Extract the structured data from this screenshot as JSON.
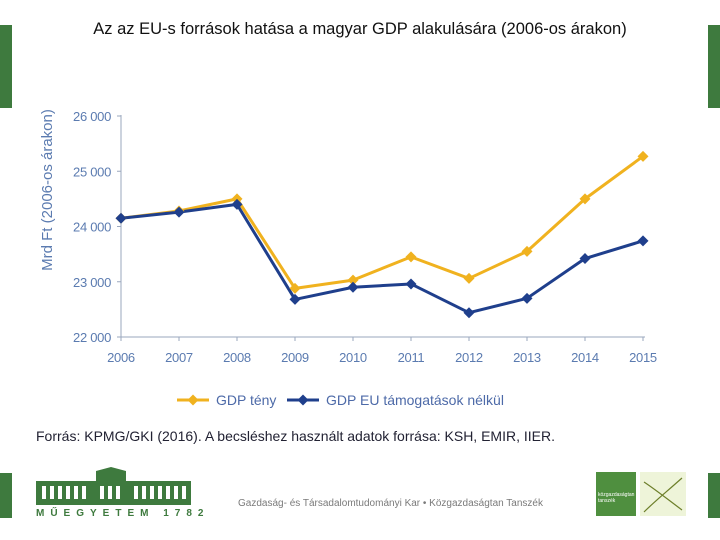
{
  "slide": {
    "title": "Az az EU-s források hatása a magyar GDP alakulására (2006-os árakon)",
    "source": "Forrás: KPMG/GKI (2016). A becsléshez használt adatok forrása: KSH, EMIR, IIER.",
    "footer_text": "Gazdaság- és Társadalomtudományi Kar   •   Közgazdaságtan Tanszék",
    "footer_logo_text": "MŰEGYETEM 1782",
    "dept_logo_text": "közgazdaságtan tanszék"
  },
  "colors": {
    "accent_green": "#3e7a3e",
    "series_gold": "#f0b21f",
    "series_navy": "#1f3f8c",
    "axis_text": "#5b7bb0"
  },
  "chart_data": {
    "type": "line",
    "title": "Az az EU-s források hatása a magyar GDP alakulására (2006-os árakon)",
    "ylabel": "Mrd Ft (2006-os árakon)",
    "xlabel": "",
    "x": [
      "2006",
      "2007",
      "2008",
      "2009",
      "2010",
      "2011",
      "2012",
      "2013",
      "2014",
      "2015"
    ],
    "ylim": [
      22000,
      26000
    ],
    "yticks": [
      22000,
      23000,
      24000,
      25000,
      26000
    ],
    "ytick_labels": [
      "22 000",
      "23 000",
      "24 000",
      "25 000",
      "26 000"
    ],
    "grid": false,
    "legend": "bottom",
    "series": [
      {
        "name": "GDP tény",
        "color": "#f0b21f",
        "values": [
          24150,
          24280,
          24500,
          22880,
          23030,
          23450,
          23060,
          23550,
          24500,
          25270
        ]
      },
      {
        "name": "GDP EU támogatások nélkül",
        "color": "#1f3f8c",
        "values": [
          24150,
          24260,
          24400,
          22680,
          22900,
          22960,
          22440,
          22700,
          23420,
          23740
        ]
      }
    ]
  }
}
